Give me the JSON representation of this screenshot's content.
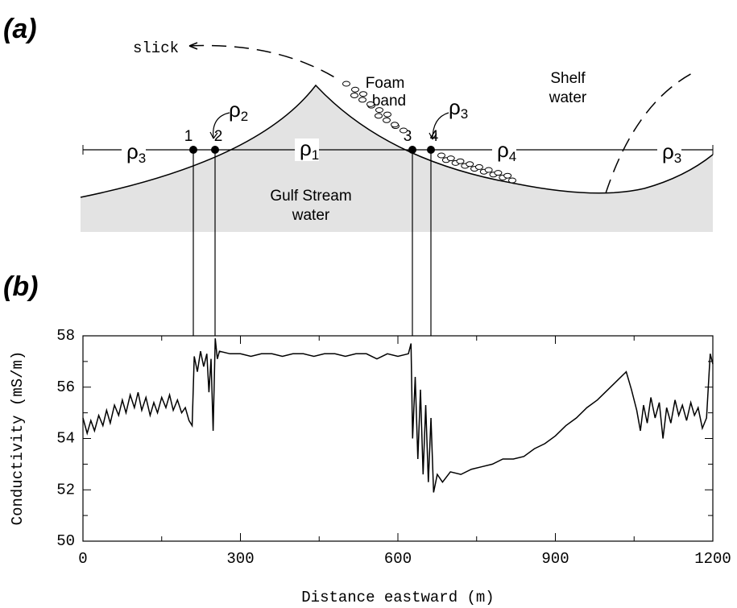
{
  "diagram": {
    "label": "(a)",
    "slick": "slick",
    "foam": [
      "Foam",
      "band"
    ],
    "shelf": [
      "Shelf",
      "water"
    ],
    "gulf": [
      "Gulf  Stream",
      "water"
    ],
    "points": [
      "1",
      "2",
      "3",
      "4"
    ],
    "densities": [
      {
        "symbol": "ρ",
        "sub": "3"
      },
      {
        "symbol": "ρ",
        "sub": "1"
      },
      {
        "symbol": "ρ",
        "sub": "4"
      },
      {
        "symbol": "ρ",
        "sub": "3"
      },
      {
        "symbol": "ρ",
        "sub": "2"
      },
      {
        "symbol": "ρ",
        "sub": "3"
      }
    ]
  },
  "chart_data": {
    "type": "line",
    "panel_label": "(b)",
    "xlabel": "Distance eastward (m)",
    "ylabel": "Conductivity (mS/m)",
    "xlim": [
      0,
      1200
    ],
    "xticks": [
      0,
      300,
      600,
      900,
      1200
    ],
    "ylim": [
      50,
      58
    ],
    "yticks": [
      50,
      52,
      54,
      56,
      58
    ],
    "x": [
      0,
      8,
      15,
      22,
      30,
      38,
      45,
      52,
      60,
      68,
      75,
      82,
      90,
      98,
      105,
      112,
      120,
      128,
      135,
      142,
      150,
      158,
      165,
      172,
      180,
      188,
      195,
      202,
      208,
      212,
      218,
      224,
      230,
      236,
      240,
      244,
      248,
      252,
      256,
      260,
      280,
      300,
      320,
      340,
      360,
      380,
      400,
      420,
      440,
      460,
      480,
      500,
      520,
      540,
      560,
      580,
      600,
      620,
      625,
      628,
      633,
      638,
      643,
      648,
      653,
      658,
      663,
      668,
      675,
      685,
      700,
      720,
      740,
      760,
      780,
      800,
      820,
      840,
      860,
      880,
      900,
      920,
      940,
      960,
      980,
      1000,
      1020,
      1035,
      1045,
      1055,
      1062,
      1068,
      1075,
      1082,
      1090,
      1098,
      1105,
      1112,
      1120,
      1128,
      1135,
      1142,
      1150,
      1158,
      1165,
      1172,
      1180,
      1188,
      1195,
      1200
    ],
    "series": [
      {
        "color": "#000000",
        "values": [
          54.8,
          54.2,
          54.7,
          54.3,
          54.9,
          54.5,
          55.1,
          54.6,
          55.3,
          54.9,
          55.5,
          55.0,
          55.7,
          55.2,
          55.8,
          55.1,
          55.6,
          54.9,
          55.4,
          55.0,
          55.6,
          55.2,
          55.7,
          55.1,
          55.5,
          55.0,
          55.2,
          54.7,
          54.5,
          57.2,
          56.6,
          57.4,
          56.8,
          57.3,
          55.8,
          57.1,
          54.3,
          57.9,
          57.1,
          57.4,
          57.3,
          57.3,
          57.2,
          57.3,
          57.3,
          57.2,
          57.3,
          57.3,
          57.2,
          57.3,
          57.3,
          57.2,
          57.3,
          57.3,
          57.1,
          57.3,
          57.2,
          57.3,
          57.7,
          54.0,
          56.4,
          53.2,
          55.9,
          52.6,
          55.3,
          52.3,
          54.8,
          51.9,
          52.6,
          52.3,
          52.7,
          52.6,
          52.8,
          52.9,
          53.0,
          53.2,
          53.2,
          53.3,
          53.6,
          53.8,
          54.1,
          54.5,
          54.8,
          55.2,
          55.5,
          55.9,
          56.3,
          56.6,
          55.9,
          55.1,
          54.3,
          55.3,
          54.6,
          55.6,
          54.8,
          55.4,
          54.0,
          55.2,
          54.6,
          55.5,
          54.9,
          55.3,
          54.7,
          55.4,
          54.9,
          55.2,
          54.4,
          54.8,
          57.3,
          56.9
        ]
      }
    ]
  }
}
